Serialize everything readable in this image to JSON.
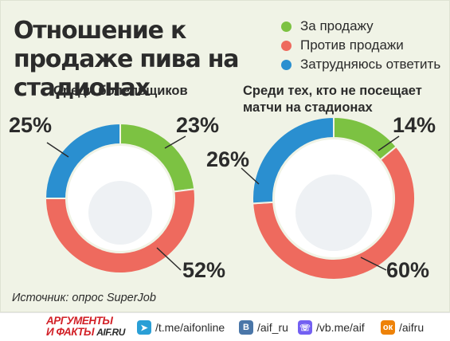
{
  "title": "Отношение к продаже пива на стадионах",
  "legend": [
    {
      "label": "За продажу",
      "color": "#7cc242"
    },
    {
      "label": "Против продажи",
      "color": "#ee6a5e"
    },
    {
      "label": "Затрудняюсь ответить",
      "color": "#2a8fd0"
    }
  ],
  "chart_data": [
    {
      "type": "pie",
      "title": "Среди болельщиков",
      "categories": [
        "За продажу",
        "Против продажи",
        "Затрудняюсь ответить"
      ],
      "values": [
        23,
        52,
        25
      ],
      "labels": [
        "23%",
        "52%",
        "25%"
      ]
    },
    {
      "type": "pie",
      "title": "Среди тех, кто не посещает матчи на стадионах",
      "categories": [
        "За продажу",
        "Против продажи",
        "Затрудняюсь ответить"
      ],
      "values": [
        14,
        60,
        26
      ],
      "labels": [
        "14%",
        "60%",
        "26%"
      ]
    }
  ],
  "source": "Источник: опрос SuperJob",
  "footer": {
    "brand_line1": "АРГУМЕНТЫ",
    "brand_line2": "И ФАКТЫ",
    "brand_domain": "AIF.RU",
    "links": [
      {
        "icon": "telegram-icon",
        "text": "/t.me/aifonline",
        "color": "#2a9fd6"
      },
      {
        "icon": "vk-icon",
        "text": "/aif_ru",
        "color": "#4a76a8"
      },
      {
        "icon": "viber-icon",
        "text": "/vb.me/aif",
        "color": "#7360f2"
      },
      {
        "icon": "odnoklassniki-icon",
        "text": "/aifru",
        "color": "#ee8208"
      }
    ]
  }
}
